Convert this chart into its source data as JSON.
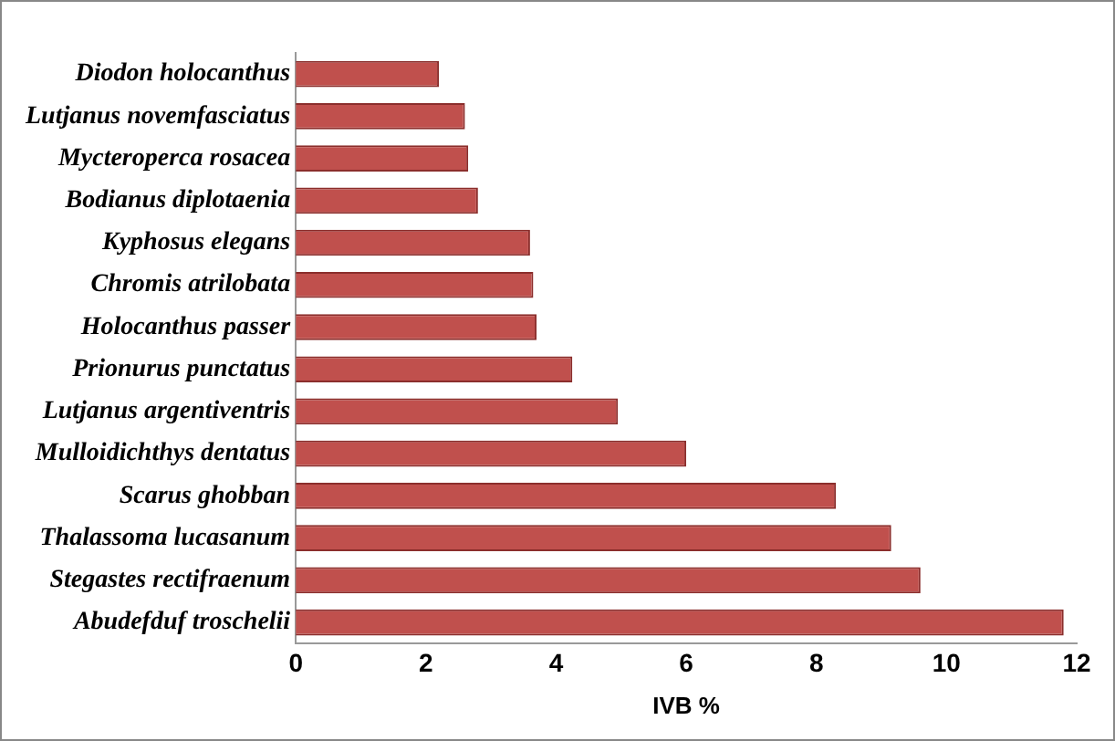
{
  "chart_data": {
    "type": "bar",
    "orientation": "horizontal",
    "xlabel": "IVB %",
    "categories": [
      "Diodon holocanthus",
      "Lutjanus novemfasciatus",
      "Mycteroperca rosacea",
      "Bodianus diplotaenia",
      "Kyphosus elegans",
      "Chromis atrilobata",
      "Holocanthus passer",
      "Prionurus punctatus",
      "Lutjanus argentiventris",
      "Mulloidichthys dentatus",
      "Scarus ghobban",
      "Thalassoma lucasanum",
      "Stegastes rectifraenum",
      "Abudefduf troschelii"
    ],
    "values": [
      2.2,
      2.6,
      2.65,
      2.8,
      3.6,
      3.65,
      3.7,
      4.25,
      4.95,
      6.0,
      8.3,
      9.15,
      9.6,
      11.8
    ],
    "color": "#c0504d",
    "xlim": [
      0,
      12
    ],
    "xticks": [
      0,
      2,
      4,
      6,
      8,
      10,
      12
    ],
    "grid": false,
    "legend": false
  }
}
